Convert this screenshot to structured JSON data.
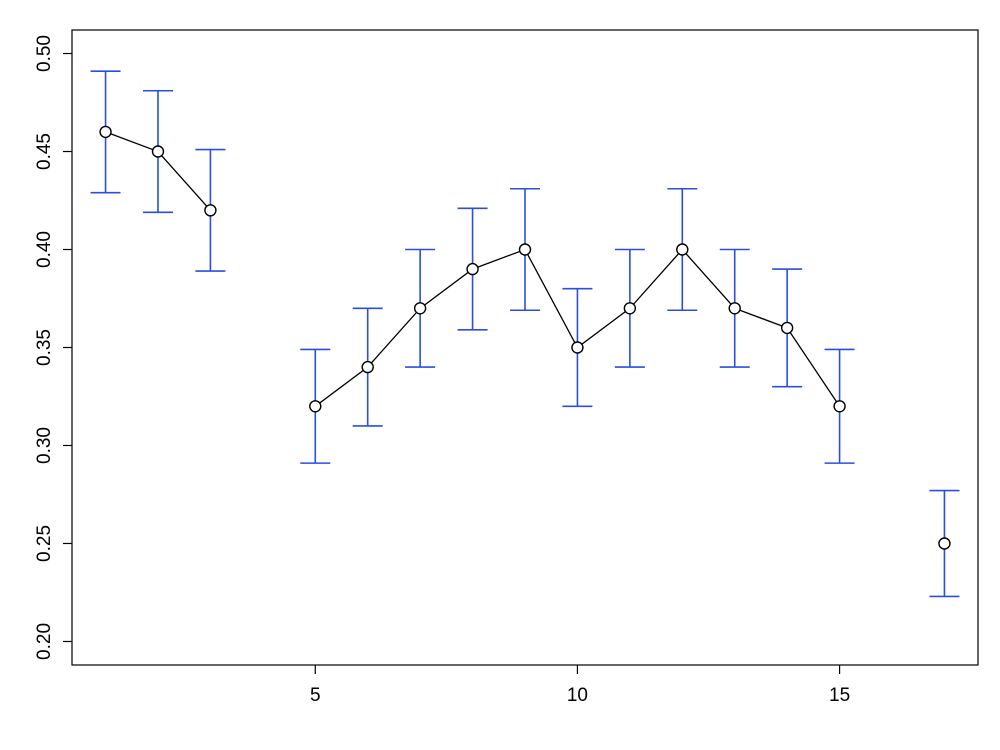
{
  "chart_data": {
    "type": "errorbar-line",
    "x": [
      1,
      2,
      3,
      4,
      5,
      6,
      7,
      8,
      9,
      10,
      11,
      12,
      13,
      14,
      15,
      16,
      17
    ],
    "values": [
      0.46,
      0.45,
      0.42,
      null,
      0.32,
      0.34,
      0.37,
      0.39,
      0.4,
      0.35,
      0.37,
      0.4,
      0.37,
      0.36,
      0.32,
      null,
      0.25
    ],
    "errors": [
      0.031,
      0.031,
      0.031,
      null,
      0.029,
      0.03,
      0.03,
      0.031,
      0.031,
      0.03,
      0.03,
      0.031,
      0.03,
      0.03,
      0.029,
      null,
      0.027
    ],
    "color": "#000000",
    "error_color": "#2a4fe0",
    "xlim": [
      0.36,
      17.64
    ],
    "ylim": [
      0.188,
      0.512
    ],
    "xticks": [
      5,
      10,
      15
    ],
    "yticks": [
      {
        "value": 0.2,
        "label": "0.20"
      },
      0.25,
      {
        "value": 0.3,
        "label": "0.30"
      },
      0.35,
      {
        "value": 0.4,
        "label": "0.40"
      },
      0.45,
      {
        "value": 0.5,
        "label": "0.50"
      }
    ]
  }
}
